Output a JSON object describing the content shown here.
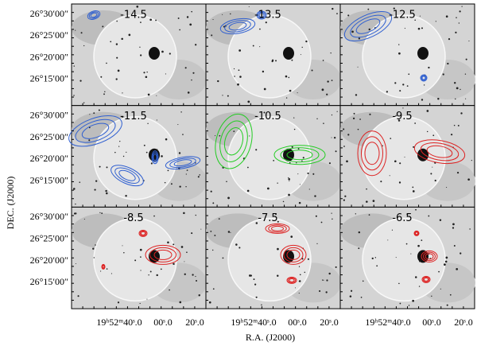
{
  "panels": [
    {
      "label": "-14.5",
      "color": "#2f5fd0"
    },
    {
      "label": "-13.5",
      "color": "#2f5fd0"
    },
    {
      "label": "-12.5",
      "color": "#2f5fd0"
    },
    {
      "label": "-11.5",
      "color": "#2f5fd0"
    },
    {
      "label": "-10.5",
      "color": "#22cc22"
    },
    {
      "label": "-9.5",
      "color": "#dd2222"
    },
    {
      "label": "-8.5",
      "color": "#dd2222"
    },
    {
      "label": "-7.5",
      "color": "#dd2222"
    },
    {
      "label": "-6.5",
      "color": "#dd2222"
    }
  ],
  "y_tick_labels": [
    "26°30′00″",
    "26°25′00″",
    "26°20′00″",
    "26°15′00″"
  ],
  "x_tick_labels": [
    "19ʰ52ᵐ40ˢ.0",
    "00ˢ.0",
    "20ˢ.0"
  ],
  "y_axis_label": "DEC. (J2000)",
  "x_axis_label": "R.A. (J2000)"
}
